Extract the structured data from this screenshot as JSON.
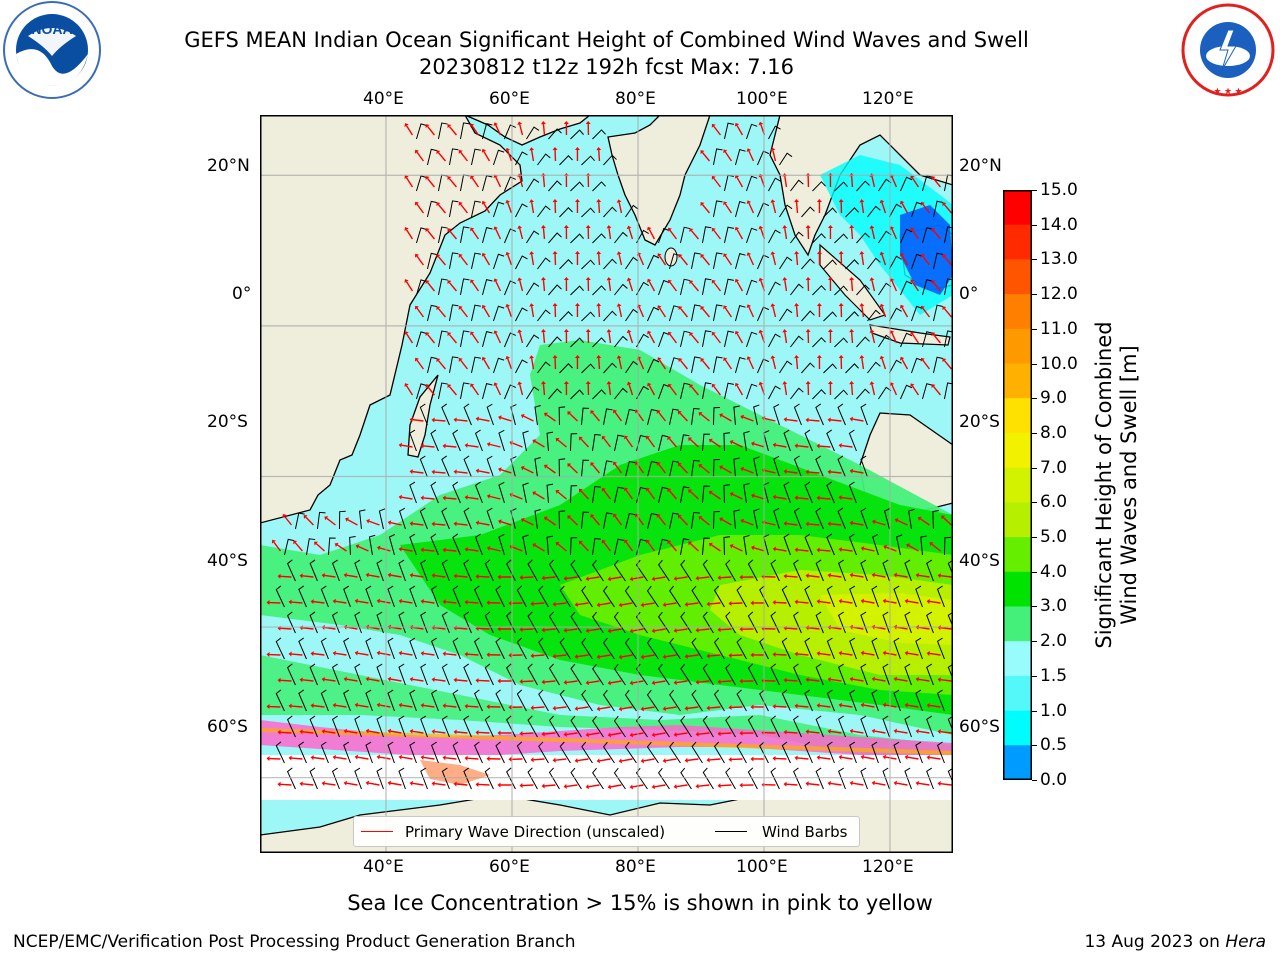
{
  "title": {
    "line1": "GEFS MEAN Indian Ocean Significant Height of Combined Wind Waves and Swell",
    "line2": "20230812 t12z 192h fcst   Max: 7.16"
  },
  "logos": {
    "left": {
      "name": "NOAA",
      "text": "NOAA",
      "ring_text": "NATIONAL OCEANIC AND ATMOSPHERIC ADMINISTRATION · U.S. DEPARTMENT OF COMMERCE",
      "color": "#0a4ea2"
    },
    "right": {
      "name": "National Weather Service",
      "ring_text": "NATIONAL WEATHER SERVICE",
      "color": "#e0211e"
    }
  },
  "map": {
    "lon_range": [
      20,
      130
    ],
    "lat_range": [
      -70,
      28
    ],
    "lon_ticks_top": [
      "40°E",
      "60°E",
      "80°E",
      "100°E",
      "120°E"
    ],
    "lon_ticks_bottom": [
      "40°E",
      "60°E",
      "80°E",
      "100°E",
      "120°E"
    ],
    "lat_ticks_left": [
      "20°N",
      "0°",
      "20°S",
      "40°S",
      "60°S"
    ],
    "lat_ticks_right": [
      "20°N",
      "0°",
      "20°S",
      "40°S",
      "60°S"
    ],
    "grid_lons": [
      40,
      60,
      80,
      100,
      120
    ],
    "grid_lats": [
      20,
      0,
      -20,
      -40,
      -60
    ],
    "land_color": "#efeedd",
    "ocean_base_color": "#9ef7f7"
  },
  "colorbar": {
    "title_line1": "Significant Height of Combined",
    "title_line2": "Wind Waves and Swell [m]",
    "labels": [
      "15.0",
      "14.0",
      "13.0",
      "12.0",
      "11.0",
      "10.0",
      "9.0",
      "8.0",
      "7.0",
      "6.0",
      "5.0",
      "4.0",
      "3.0",
      "2.0",
      "1.5",
      "1.0",
      "0.5",
      "0.0"
    ],
    "colors_top_to_bottom": [
      "#ff0000",
      "#ff2a00",
      "#ff5500",
      "#ff8000",
      "#ff9900",
      "#ffb000",
      "#ffe100",
      "#f2f200",
      "#d2f200",
      "#b6f000",
      "#66ee00",
      "#00e200",
      "#44f07a",
      "#99fcfc",
      "#55f8f8",
      "#00fcfc",
      "#009bff",
      "#0055ff",
      "#0000ff"
    ]
  },
  "legend": {
    "wave_label": "Primary Wave Direction (unscaled)",
    "wave_color": "#ff0000",
    "barb_label": "Wind Barbs",
    "barb_color": "#000000"
  },
  "note": "Sea Ice Concentration > 15% is shown in pink to yellow",
  "footer": {
    "left": "NCEP/EMC/Verification Post Processing Product Generation Branch",
    "right_prefix": "13 Aug 2023 on ",
    "right_machine": "Hera"
  }
}
